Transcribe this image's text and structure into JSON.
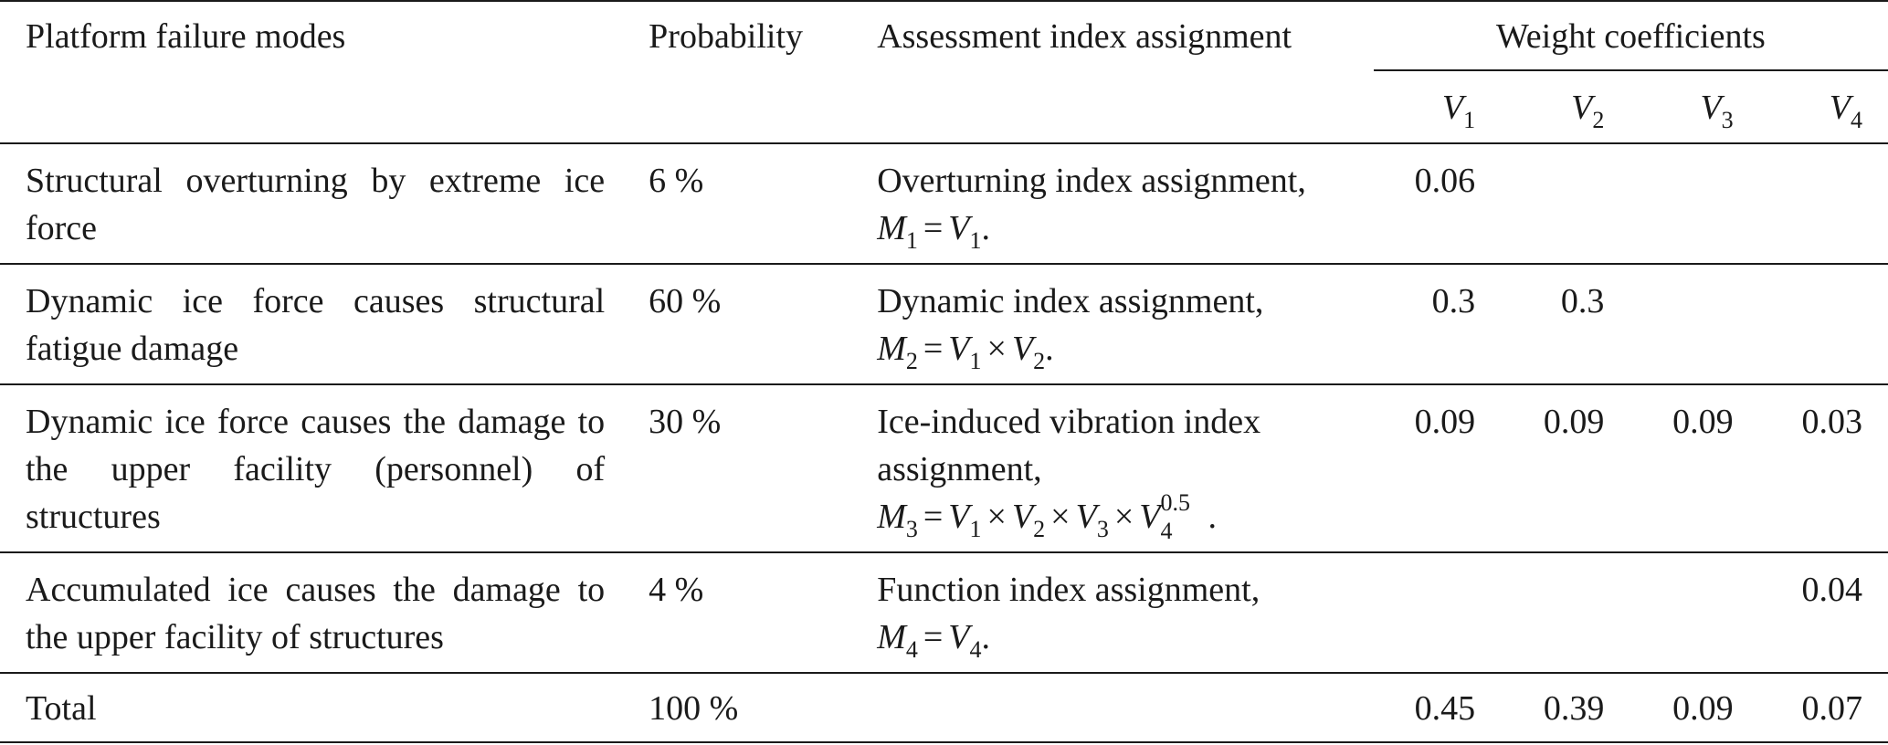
{
  "header": {
    "col_mode": "Platform failure modes",
    "col_probability": "Probability",
    "col_assessment": "Assessment index assignment",
    "col_weights": "Weight coefficients",
    "v_labels": [
      "V",
      "V",
      "V",
      "V"
    ],
    "v_subs": [
      "1",
      "2",
      "3",
      "4"
    ]
  },
  "rows": [
    {
      "mode": "Structural overturning by extreme ice force",
      "probability": "6 %",
      "assessment": "Overturning index assignment,",
      "formula": "M1 = V1.",
      "weights": [
        "0.06",
        "",
        "",
        ""
      ]
    },
    {
      "mode": "Dynamic ice force causes structural fatigue damage",
      "probability": "60 %",
      "assessment": "Dynamic index assignment,",
      "formula": "M2 = V1 × V2.",
      "weights": [
        "0.3",
        "0.3",
        "",
        ""
      ]
    },
    {
      "mode": "Dynamic ice force causes the damage to the upper facility (personnel) of structures",
      "probability": "30 %",
      "assessment": "Ice-induced vibration index assignment,",
      "formula": "M3 = V1 × V2 × V3 × V4^0.5.",
      "weights": [
        "0.09",
        "0.09",
        "0.09",
        "0.03"
      ]
    },
    {
      "mode": "Accumulated ice causes the damage to the upper facility of structures",
      "probability": "4 %",
      "assessment": "Function index assignment,",
      "formula": "M4 = V4.",
      "weights": [
        "",
        "",
        "",
        "0.04"
      ]
    }
  ],
  "total": {
    "label": "Total",
    "probability": "100 %",
    "weights": [
      "0.45",
      "0.39",
      "0.09",
      "0.07"
    ]
  },
  "formula_parts": {
    "exp": "0.5"
  }
}
